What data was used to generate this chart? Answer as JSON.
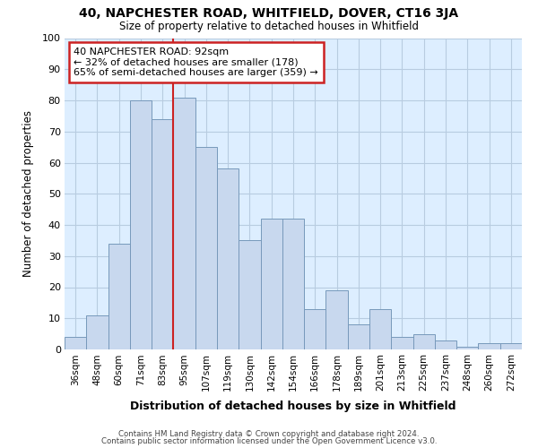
{
  "title1": "40, NAPCHESTER ROAD, WHITFIELD, DOVER, CT16 3JA",
  "title2": "Size of property relative to detached houses in Whitfield",
  "xlabel": "Distribution of detached houses by size in Whitfield",
  "ylabel": "Number of detached properties",
  "categories": [
    "36sqm",
    "48sqm",
    "60sqm",
    "71sqm",
    "83sqm",
    "95sqm",
    "107sqm",
    "119sqm",
    "130sqm",
    "142sqm",
    "154sqm",
    "166sqm",
    "178sqm",
    "189sqm",
    "201sqm",
    "213sqm",
    "225sqm",
    "237sqm",
    "248sqm",
    "260sqm",
    "272sqm"
  ],
  "values": [
    4,
    11,
    34,
    80,
    74,
    81,
    65,
    58,
    35,
    42,
    42,
    13,
    19,
    8,
    13,
    4,
    5,
    3,
    1,
    2,
    2
  ],
  "bar_color": "#c8d8ee",
  "bar_edge_color": "#7799bb",
  "vline_x": 4.5,
  "vline_color": "#cc2222",
  "annotation_text": "40 NAPCHESTER ROAD: 92sqm\n← 32% of detached houses are smaller (178)\n65% of semi-detached houses are larger (359) →",
  "annotation_box_color": "#ffffff",
  "annotation_box_edge": "#cc2222",
  "ylim": [
    0,
    100
  ],
  "yticks": [
    0,
    10,
    20,
    30,
    40,
    50,
    60,
    70,
    80,
    90,
    100
  ],
  "grid_color": "#b8cce0",
  "ax_bg_color": "#ddeeff",
  "fig_bg_color": "#ffffff",
  "footer1": "Contains HM Land Registry data © Crown copyright and database right 2024.",
  "footer2": "Contains public sector information licensed under the Open Government Licence v3.0."
}
